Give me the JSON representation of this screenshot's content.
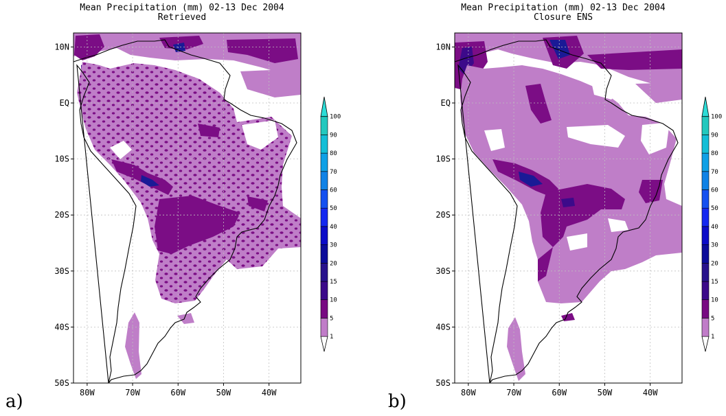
{
  "panels": [
    {
      "letter": "a)",
      "title": "Mean Precipitation (mm) 02-13 Dec 2004",
      "subtitle": "Retrieved"
    },
    {
      "letter": "b)",
      "title": "Mean Precipitation (mm) 02-13 Dec 2004",
      "subtitle": "Closure ENS"
    }
  ],
  "axes": {
    "lat_labels": [
      "10N",
      "EQ",
      "10S",
      "20S",
      "30S",
      "40S",
      "50S"
    ],
    "lat_values": [
      10,
      0,
      -10,
      -20,
      -30,
      -40,
      -50
    ],
    "lon_labels": [
      "80W",
      "70W",
      "60W",
      "50W",
      "40W"
    ],
    "lon_values": [
      -80,
      -70,
      -60,
      -50,
      -40
    ],
    "lon_range": [
      -83,
      -33
    ],
    "lat_range": [
      -50,
      12.5
    ]
  },
  "colorbar": {
    "levels": [
      "1",
      "5",
      "10",
      "15",
      "20",
      "30",
      "40",
      "50",
      "60",
      "70",
      "80",
      "90",
      "100"
    ],
    "colors": [
      "#c07cc8",
      "#780a82",
      "#3c0a8a",
      "#28128c",
      "#0c0c9a",
      "#0c0cc8",
      "#1428f0",
      "#1450f0",
      "#0f82e6",
      "#0fa0e6",
      "#14bed7",
      "#23c8be",
      "#2ddcd7"
    ]
  },
  "colors": {
    "precip_1_5": "#bf7ec8",
    "precip_5_10": "#7b0d85",
    "precip_10_15": "#3c0a8a",
    "precip_15_20": "#1a1a96",
    "coastline": "#000000",
    "grid": "#bfbfbf"
  }
}
